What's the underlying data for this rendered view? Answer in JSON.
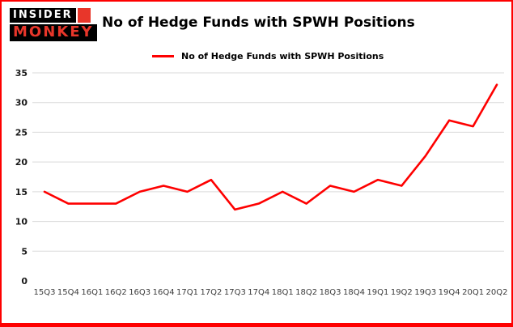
{
  "logo": {
    "line1": "INSIDER",
    "line2": "MONKEY"
  },
  "header": {
    "title": "No of Hedge Funds with SPWH Positions"
  },
  "legend": {
    "label": "No of Hedge Funds with SPWH Positions"
  },
  "colors": {
    "accent": "#fe0000",
    "logo_red": "#e8362a",
    "gridline": "#d9d9d9"
  },
  "chart_data": {
    "type": "line",
    "title": "No of Hedge Funds with SPWH Positions",
    "categories": [
      "15Q3",
      "15Q4",
      "16Q1",
      "16Q2",
      "16Q3",
      "16Q4",
      "17Q1",
      "17Q2",
      "17Q3",
      "17Q4",
      "18Q1",
      "18Q2",
      "18Q3",
      "18Q4",
      "19Q1",
      "19Q2",
      "19Q3",
      "19Q4",
      "20Q1",
      "20Q2"
    ],
    "values": [
      15,
      13,
      13,
      13,
      15,
      16,
      15,
      17,
      12,
      13,
      15,
      13,
      16,
      15,
      17,
      16,
      21,
      27,
      26,
      33
    ],
    "xlabel": "",
    "ylabel": "",
    "ylim": [
      0,
      35
    ],
    "yticks": [
      0,
      5,
      10,
      15,
      20,
      25,
      30,
      35
    ],
    "line_color": "#fe0000",
    "grid": true,
    "legend_position": "top-left"
  }
}
